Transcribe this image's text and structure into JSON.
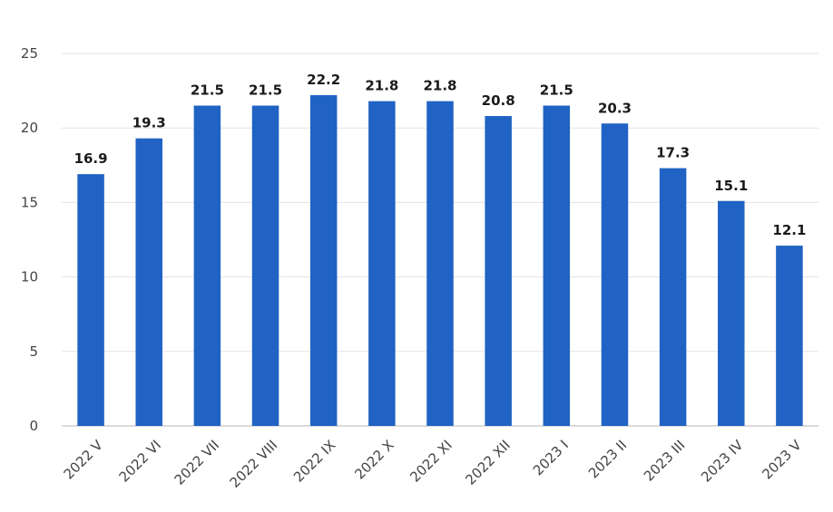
{
  "chart_data": {
    "type": "bar",
    "title": "",
    "xlabel": "",
    "ylabel": "",
    "categories": [
      "2022 V",
      "2022 VI",
      "2022 VII",
      "2022 VIII",
      "2022 IX",
      "2022 X",
      "2022 XI",
      "2022 XII",
      "2023 I",
      "2023 II",
      "2023 III",
      "2023 IV",
      "2023 V"
    ],
    "values": [
      16.9,
      19.3,
      21.5,
      21.5,
      22.2,
      21.8,
      21.8,
      20.8,
      21.5,
      20.3,
      17.3,
      15.1,
      12.1
    ],
    "value_labels": [
      "16.9",
      "19.3",
      "21.5",
      "21.5",
      "22.2",
      "21.8",
      "21.8",
      "20.8",
      "21.5",
      "20.3",
      "17.3",
      "15.1",
      "12.1"
    ],
    "ylim": [
      0,
      25
    ],
    "yticks": [
      0,
      5,
      10,
      15,
      20,
      25
    ],
    "ytick_labels": [
      "0",
      "5",
      "10",
      "15",
      "20",
      "25"
    ],
    "grid": true,
    "legend": "none",
    "colors": {
      "bar": "#2063C4",
      "grid": "#e3e3e3",
      "text": "#444444"
    }
  }
}
